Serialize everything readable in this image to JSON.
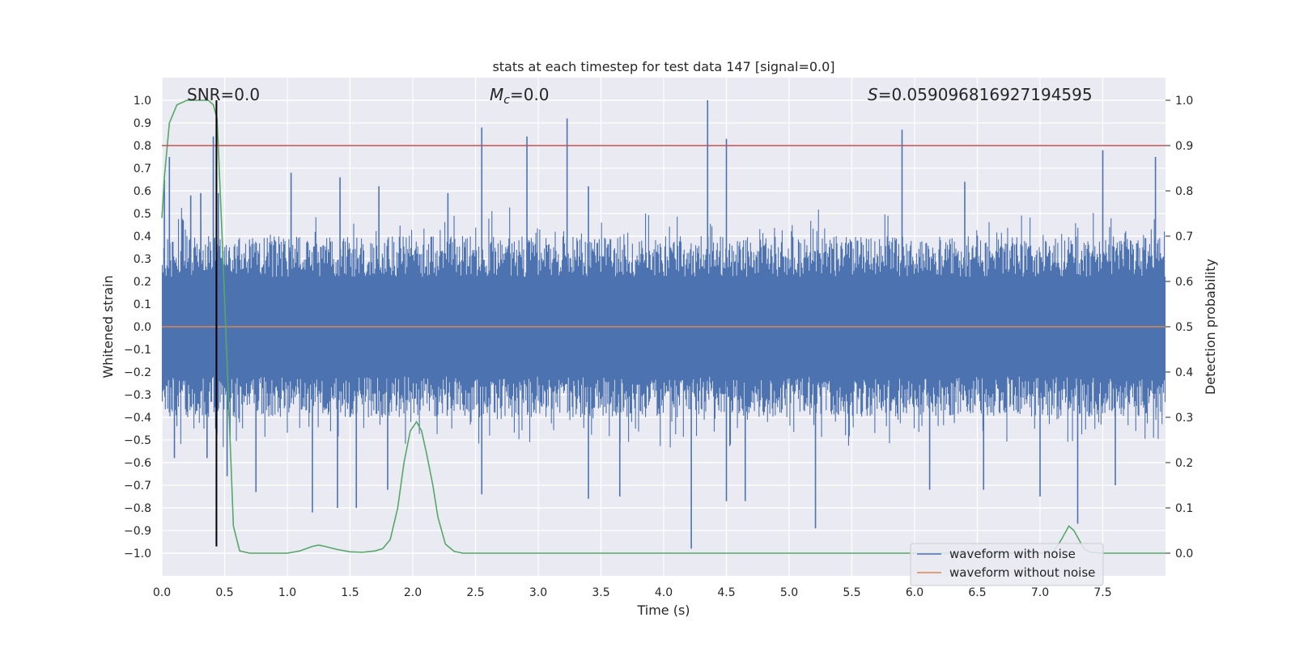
{
  "chart_data": {
    "type": "line",
    "title": "stats at each timestep for test data 147 [signal=0.0]",
    "xlabel": "Time (s)",
    "ylabel": "Whitened strain",
    "y2label": "Detection probability",
    "xlim": [
      0,
      8
    ],
    "ylim": [
      -1.1,
      1.1
    ],
    "y2lim": [
      -0.05,
      1.05
    ],
    "x_ticks": [
      0.0,
      0.5,
      1.0,
      1.5,
      2.0,
      2.5,
      3.0,
      3.5,
      4.0,
      4.5,
      5.0,
      5.5,
      6.0,
      6.5,
      7.0,
      7.5
    ],
    "x_tick_labels": [
      "0.0",
      "0.5",
      "1.0",
      "1.5",
      "2.0",
      "2.5",
      "3.0",
      "3.5",
      "4.0",
      "4.5",
      "5.0",
      "5.5",
      "6.0",
      "6.5",
      "7.0",
      "7.5"
    ],
    "y_ticks": [
      -1.0,
      -0.9,
      -0.8,
      -0.7,
      -0.6,
      -0.5,
      -0.4,
      -0.3,
      -0.2,
      -0.1,
      0.0,
      0.1,
      0.2,
      0.3,
      0.4,
      0.5,
      0.6,
      0.7,
      0.8,
      0.9,
      1.0
    ],
    "y_tick_labels": [
      "−1.0",
      "−0.9",
      "−0.8",
      "−0.7",
      "−0.6",
      "−0.5",
      "−0.4",
      "−0.3",
      "−0.2",
      "−0.1",
      "0.0",
      "0.1",
      "0.2",
      "0.3",
      "0.4",
      "0.5",
      "0.6",
      "0.7",
      "0.8",
      "0.9",
      "1.0"
    ],
    "y2_ticks": [
      0.0,
      0.1,
      0.2,
      0.3,
      0.4,
      0.5,
      0.6,
      0.7,
      0.8,
      0.9,
      1.0
    ],
    "y2_tick_labels": [
      "0.0",
      "0.1",
      "0.2",
      "0.3",
      "0.4",
      "0.5",
      "0.6",
      "0.7",
      "0.8",
      "0.9",
      "1.0"
    ],
    "grid": true,
    "annotations": {
      "snr": "SNR=0.0",
      "mc_symbol": "M",
      "mc_subscript": "c",
      "mc_value": "=0.0",
      "s_symbol": "S",
      "s_value": "=0.059096816927194595"
    },
    "series": [
      {
        "name": "waveform with noise",
        "color": "#4c72b0",
        "kind": "noise_envelope",
        "typical_upper": 0.4,
        "typical_lower": -0.4,
        "spikes": [
          [
            0.02,
            0.65
          ],
          [
            0.06,
            0.75
          ],
          [
            0.17,
            0.47
          ],
          [
            0.23,
            0.58
          ],
          [
            0.31,
            0.59
          ],
          [
            0.41,
            0.84
          ],
          [
            0.45,
            0.59
          ],
          [
            1.03,
            0.68
          ],
          [
            1.42,
            0.66
          ],
          [
            1.73,
            0.62
          ],
          [
            2.28,
            0.59
          ],
          [
            2.55,
            0.88
          ],
          [
            2.91,
            0.84
          ],
          [
            3.23,
            0.92
          ],
          [
            3.4,
            0.62
          ],
          [
            4.35,
            1.0
          ],
          [
            4.5,
            0.83
          ],
          [
            5.9,
            0.87
          ],
          [
            6.4,
            0.64
          ],
          [
            7.5,
            0.78
          ],
          [
            7.92,
            0.75
          ],
          [
            0.1,
            -0.58
          ],
          [
            0.36,
            -0.58
          ],
          [
            0.52,
            -0.66
          ],
          [
            0.75,
            -0.73
          ],
          [
            1.2,
            -0.82
          ],
          [
            1.4,
            -0.8
          ],
          [
            1.55,
            -0.8
          ],
          [
            1.8,
            -0.72
          ],
          [
            2.55,
            -0.74
          ],
          [
            3.4,
            -0.76
          ],
          [
            3.65,
            -0.75
          ],
          [
            4.22,
            -0.98
          ],
          [
            4.5,
            -0.77
          ],
          [
            4.65,
            -0.77
          ],
          [
            5.21,
            -0.89
          ],
          [
            6.12,
            -0.72
          ],
          [
            6.55,
            -0.72
          ],
          [
            7.0,
            -0.75
          ],
          [
            7.3,
            -0.87
          ],
          [
            7.6,
            -0.7
          ]
        ]
      },
      {
        "name": "waveform without noise",
        "color": "#dd8452",
        "x": [
          0,
          8
        ],
        "values": [
          0,
          0
        ]
      },
      {
        "name": "detection probability",
        "axis": "right",
        "color": "#55a868",
        "x": [
          0.0,
          0.02,
          0.06,
          0.12,
          0.2,
          0.3,
          0.37,
          0.41,
          0.44,
          0.48,
          0.53,
          0.57,
          0.62,
          0.7,
          0.8,
          1.0,
          1.1,
          1.15,
          1.2,
          1.25,
          1.3,
          1.4,
          1.5,
          1.6,
          1.7,
          1.76,
          1.82,
          1.88,
          1.93,
          1.98,
          2.03,
          2.07,
          2.11,
          2.16,
          2.2,
          2.26,
          2.33,
          2.4,
          2.6,
          3.0,
          4.0,
          5.0,
          6.0,
          6.5,
          7.0,
          7.1,
          7.17,
          7.23,
          7.27,
          7.31,
          7.35,
          7.4,
          7.5,
          8.0
        ],
        "values": [
          0.74,
          0.83,
          0.95,
          0.99,
          1.0,
          1.0,
          1.0,
          0.99,
          0.96,
          0.7,
          0.35,
          0.06,
          0.005,
          0.0,
          0.0,
          0.0,
          0.005,
          0.01,
          0.015,
          0.018,
          0.015,
          0.008,
          0.003,
          0.002,
          0.005,
          0.01,
          0.03,
          0.1,
          0.2,
          0.27,
          0.29,
          0.27,
          0.22,
          0.15,
          0.08,
          0.02,
          0.004,
          0.0,
          0.0,
          0.0,
          0.0,
          0.0,
          0.0,
          0.0,
          0.0,
          0.0,
          0.03,
          0.06,
          0.05,
          0.03,
          0.01,
          0.002,
          0.0,
          0.0
        ]
      },
      {
        "name": "detection threshold",
        "axis": "right",
        "color": "#c44e52",
        "x": [
          0,
          8
        ],
        "values": [
          0.9,
          0.9
        ]
      },
      {
        "name": "event time marker",
        "color": "#000000",
        "x": [
          0.435,
          0.435
        ],
        "values": [
          -0.97,
          1.0
        ]
      }
    ],
    "legend": {
      "placement": "lower-right",
      "entries": [
        {
          "label": "waveform with noise",
          "color": "#4c72b0"
        },
        {
          "label": "waveform without noise",
          "color": "#dd8452"
        }
      ]
    }
  }
}
